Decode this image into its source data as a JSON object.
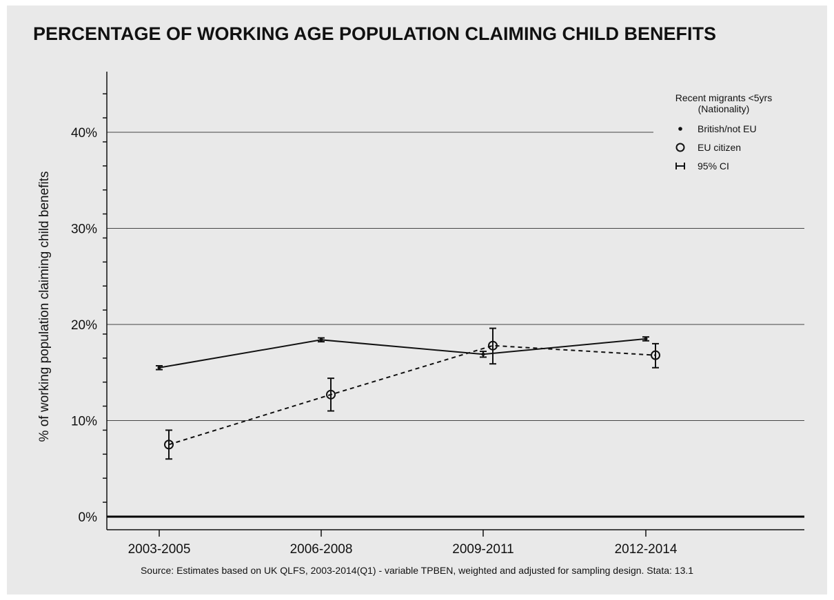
{
  "chart_data": {
    "type": "line",
    "title": "PERCENTAGE OF WORKING AGE POPULATION CLAIMING CHILD BENEFITS",
    "ylabel": "% of working population claiming child benefits",
    "xlabel": "",
    "categories": [
      "2003-2005",
      "2006-2008",
      "2009-2011",
      "2012-2014"
    ],
    "ylim": [
      0,
      45
    ],
    "yticks": [
      0,
      10,
      20,
      30,
      40
    ],
    "ytick_labels": [
      "0%",
      "10%",
      "20%",
      "30%",
      "40%"
    ],
    "grid": true,
    "legend": {
      "title_line1": "Recent migrants <5yrs",
      "title_line2": "(Nationality)",
      "placement": "top-right",
      "items": [
        "British/not EU",
        "EU citizen",
        "95% CI"
      ]
    },
    "series": [
      {
        "name": "British/not EU",
        "marker": "dot",
        "line": "solid",
        "values": [
          15.5,
          18.4,
          16.9,
          18.5
        ],
        "ci_low": [
          15.3,
          18.2,
          16.6,
          18.3
        ],
        "ci_high": [
          15.7,
          18.6,
          17.2,
          18.7
        ]
      },
      {
        "name": "EU citizen",
        "marker": "hollow-circle",
        "line": "dashed",
        "values": [
          7.5,
          12.7,
          17.8,
          16.8
        ],
        "ci_low": [
          6.0,
          11.0,
          15.9,
          15.5
        ],
        "ci_high": [
          9.0,
          14.4,
          19.6,
          18.0
        ]
      }
    ],
    "source": "Source: Estimates based on UK QLFS, 2003-2014(Q1) - variable TPBEN, weighted and adjusted for sampling design. Stata: 13.1"
  }
}
